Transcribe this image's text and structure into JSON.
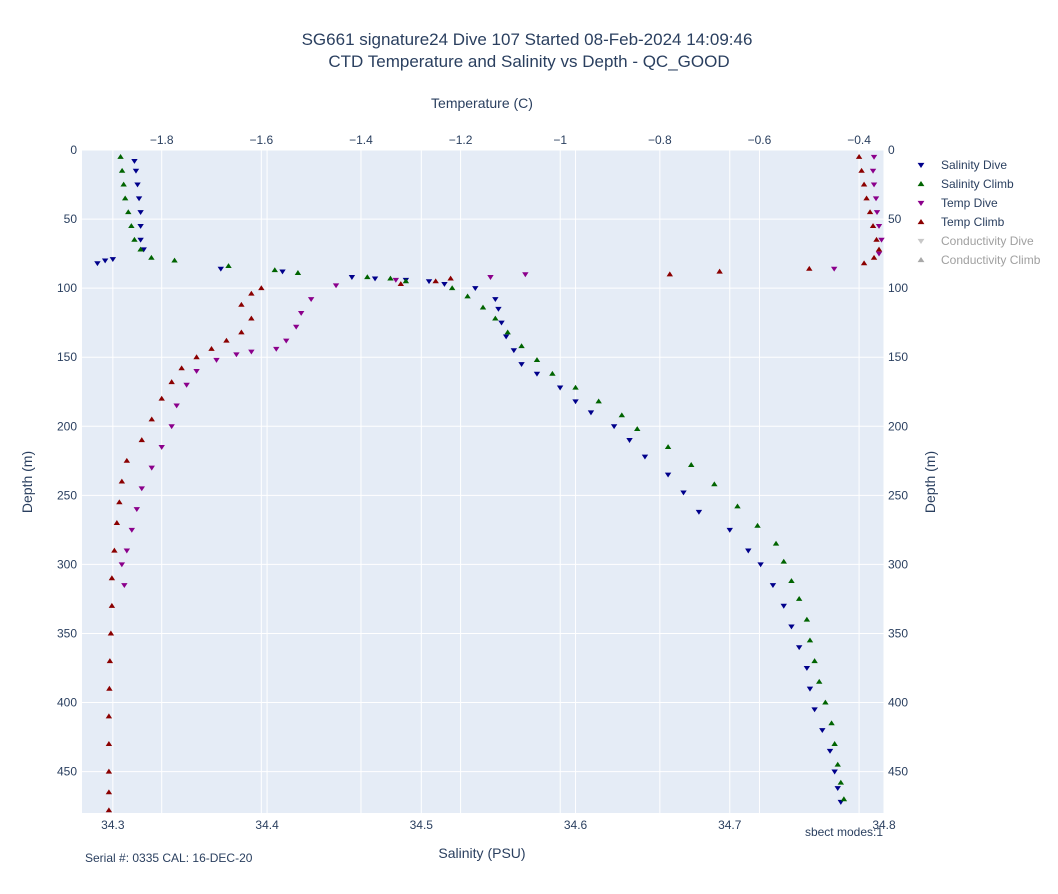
{
  "chart_data": {
    "type": "scatter",
    "title": "SG661 signature24 Dive 107 Started 08-Feb-2024 14:09:46",
    "subtitle": "CTD Temperature and Salinity vs Depth - QC_GOOD",
    "xlabel": "Salinity (PSU)",
    "x2label": "Temperature (C)",
    "ylabel": "Depth (m)",
    "xlim": [
      34.28,
      34.8
    ],
    "x2lim": [
      -1.96,
      -0.35
    ],
    "ylim": [
      0,
      480
    ],
    "y_reversed": true,
    "x_ticks": [
      "34.3",
      "34.4",
      "34.5",
      "34.6",
      "34.7",
      "34.8"
    ],
    "x_tick_values": [
      34.3,
      34.4,
      34.5,
      34.6,
      34.7,
      34.8
    ],
    "x2_ticks": [
      "−1.8",
      "−1.6",
      "−1.4",
      "−1.2",
      "−1",
      "−0.8",
      "−0.6",
      "−0.4"
    ],
    "x2_tick_values": [
      -1.8,
      -1.6,
      -1.4,
      -1.2,
      -1.0,
      -0.8,
      -0.6,
      -0.4
    ],
    "y_ticks": [
      "0",
      "50",
      "100",
      "150",
      "200",
      "250",
      "300",
      "350",
      "400",
      "450"
    ],
    "y_tick_values": [
      0,
      50,
      100,
      150,
      200,
      250,
      300,
      350,
      400,
      450
    ],
    "grid": true,
    "legend_position": "right",
    "series": [
      {
        "name": "Salinity Dive",
        "axis": "salinity",
        "marker": "triangle-down",
        "color": "#00008b",
        "visible": true,
        "points": [
          [
            34.314,
            8
          ],
          [
            34.315,
            15
          ],
          [
            34.316,
            25
          ],
          [
            34.317,
            35
          ],
          [
            34.318,
            45
          ],
          [
            34.318,
            55
          ],
          [
            34.318,
            65
          ],
          [
            34.32,
            72
          ],
          [
            34.29,
            82
          ],
          [
            34.295,
            80
          ],
          [
            34.3,
            79
          ],
          [
            34.37,
            86
          ],
          [
            34.41,
            88
          ],
          [
            34.455,
            92
          ],
          [
            34.47,
            93
          ],
          [
            34.49,
            94
          ],
          [
            34.505,
            95
          ],
          [
            34.515,
            97
          ],
          [
            34.535,
            100
          ],
          [
            34.548,
            108
          ],
          [
            34.55,
            115
          ],
          [
            34.552,
            125
          ],
          [
            34.555,
            135
          ],
          [
            34.56,
            145
          ],
          [
            34.565,
            155
          ],
          [
            34.575,
            162
          ],
          [
            34.59,
            172
          ],
          [
            34.6,
            182
          ],
          [
            34.61,
            190
          ],
          [
            34.625,
            200
          ],
          [
            34.635,
            210
          ],
          [
            34.645,
            222
          ],
          [
            34.66,
            235
          ],
          [
            34.67,
            248
          ],
          [
            34.68,
            262
          ],
          [
            34.7,
            275
          ],
          [
            34.712,
            290
          ],
          [
            34.72,
            300
          ],
          [
            34.728,
            315
          ],
          [
            34.735,
            330
          ],
          [
            34.74,
            345
          ],
          [
            34.745,
            360
          ],
          [
            34.75,
            375
          ],
          [
            34.752,
            390
          ],
          [
            34.755,
            405
          ],
          [
            34.76,
            420
          ],
          [
            34.765,
            435
          ],
          [
            34.768,
            450
          ],
          [
            34.77,
            462
          ],
          [
            34.772,
            472
          ]
        ]
      },
      {
        "name": "Salinity Climb",
        "axis": "salinity",
        "marker": "triangle-up",
        "color": "#006400",
        "visible": true,
        "points": [
          [
            34.305,
            5
          ],
          [
            34.306,
            15
          ],
          [
            34.307,
            25
          ],
          [
            34.308,
            35
          ],
          [
            34.31,
            45
          ],
          [
            34.312,
            55
          ],
          [
            34.314,
            65
          ],
          [
            34.318,
            72
          ],
          [
            34.325,
            78
          ],
          [
            34.34,
            80
          ],
          [
            34.375,
            84
          ],
          [
            34.405,
            87
          ],
          [
            34.42,
            89
          ],
          [
            34.465,
            92
          ],
          [
            34.48,
            93
          ],
          [
            34.49,
            95
          ],
          [
            34.52,
            100
          ],
          [
            34.53,
            106
          ],
          [
            34.54,
            114
          ],
          [
            34.548,
            122
          ],
          [
            34.556,
            132
          ],
          [
            34.565,
            142
          ],
          [
            34.575,
            152
          ],
          [
            34.585,
            162
          ],
          [
            34.6,
            172
          ],
          [
            34.615,
            182
          ],
          [
            34.63,
            192
          ],
          [
            34.64,
            202
          ],
          [
            34.66,
            215
          ],
          [
            34.675,
            228
          ],
          [
            34.69,
            242
          ],
          [
            34.705,
            258
          ],
          [
            34.718,
            272
          ],
          [
            34.73,
            285
          ],
          [
            34.735,
            298
          ],
          [
            34.74,
            312
          ],
          [
            34.745,
            325
          ],
          [
            34.75,
            340
          ],
          [
            34.752,
            355
          ],
          [
            34.755,
            370
          ],
          [
            34.758,
            385
          ],
          [
            34.762,
            400
          ],
          [
            34.766,
            415
          ],
          [
            34.768,
            430
          ],
          [
            34.77,
            445
          ],
          [
            34.772,
            458
          ],
          [
            34.774,
            470
          ]
        ]
      },
      {
        "name": "Temp Dive",
        "axis": "temperature",
        "marker": "triangle-down",
        "color": "#8b008b",
        "visible": true,
        "points": [
          [
            -0.37,
            5
          ],
          [
            -0.372,
            15
          ],
          [
            -0.37,
            25
          ],
          [
            -0.366,
            35
          ],
          [
            -0.364,
            45
          ],
          [
            -0.36,
            55
          ],
          [
            -0.355,
            65
          ],
          [
            -0.36,
            75
          ],
          [
            -0.45,
            86
          ],
          [
            -1.07,
            90
          ],
          [
            -1.14,
            92
          ],
          [
            -1.33,
            94
          ],
          [
            -1.45,
            98
          ],
          [
            -1.5,
            108
          ],
          [
            -1.52,
            118
          ],
          [
            -1.53,
            128
          ],
          [
            -1.55,
            138
          ],
          [
            -1.57,
            144
          ],
          [
            -1.62,
            146
          ],
          [
            -1.65,
            148
          ],
          [
            -1.69,
            152
          ],
          [
            -1.73,
            160
          ],
          [
            -1.75,
            170
          ],
          [
            -1.77,
            185
          ],
          [
            -1.78,
            200
          ],
          [
            -1.8,
            215
          ],
          [
            -1.82,
            230
          ],
          [
            -1.84,
            245
          ],
          [
            -1.85,
            260
          ],
          [
            -1.86,
            275
          ],
          [
            -1.87,
            290
          ],
          [
            -1.88,
            300
          ],
          [
            -1.875,
            315
          ]
        ]
      },
      {
        "name": "Temp Climb",
        "axis": "temperature",
        "marker": "triangle-up",
        "color": "#8b0000",
        "visible": true,
        "points": [
          [
            -0.4,
            5
          ],
          [
            -0.395,
            15
          ],
          [
            -0.39,
            25
          ],
          [
            -0.385,
            35
          ],
          [
            -0.378,
            45
          ],
          [
            -0.372,
            55
          ],
          [
            -0.365,
            65
          ],
          [
            -0.36,
            72
          ],
          [
            -0.37,
            78
          ],
          [
            -0.39,
            82
          ],
          [
            -0.5,
            86
          ],
          [
            -0.68,
            88
          ],
          [
            -0.78,
            90
          ],
          [
            -1.22,
            93
          ],
          [
            -1.25,
            95
          ],
          [
            -1.32,
            97
          ],
          [
            -1.6,
            100
          ],
          [
            -1.62,
            104
          ],
          [
            -1.64,
            112
          ],
          [
            -1.62,
            122
          ],
          [
            -1.64,
            132
          ],
          [
            -1.67,
            138
          ],
          [
            -1.7,
            144
          ],
          [
            -1.73,
            150
          ],
          [
            -1.76,
            158
          ],
          [
            -1.78,
            168
          ],
          [
            -1.8,
            180
          ],
          [
            -1.82,
            195
          ],
          [
            -1.84,
            210
          ],
          [
            -1.87,
            225
          ],
          [
            -1.88,
            240
          ],
          [
            -1.885,
            255
          ],
          [
            -1.89,
            270
          ],
          [
            -1.895,
            290
          ],
          [
            -1.9,
            310
          ],
          [
            -1.9,
            330
          ],
          [
            -1.902,
            350
          ],
          [
            -1.904,
            370
          ],
          [
            -1.905,
            390
          ],
          [
            -1.906,
            410
          ],
          [
            -1.906,
            430
          ],
          [
            -1.906,
            450
          ],
          [
            -1.906,
            465
          ],
          [
            -1.906,
            478
          ]
        ]
      },
      {
        "name": "Conductivity Dive",
        "axis": "temperature",
        "marker": "triangle-down",
        "color": "#c8c8c8",
        "visible": false,
        "points": []
      },
      {
        "name": "Conductivity Climb",
        "axis": "temperature",
        "marker": "triangle-up",
        "color": "#a8a8a8",
        "visible": false,
        "points": []
      }
    ],
    "annotations": {
      "serial": "Serial #: 0335  CAL: 16-DEC-20",
      "modes": "sbect modes:1"
    }
  }
}
